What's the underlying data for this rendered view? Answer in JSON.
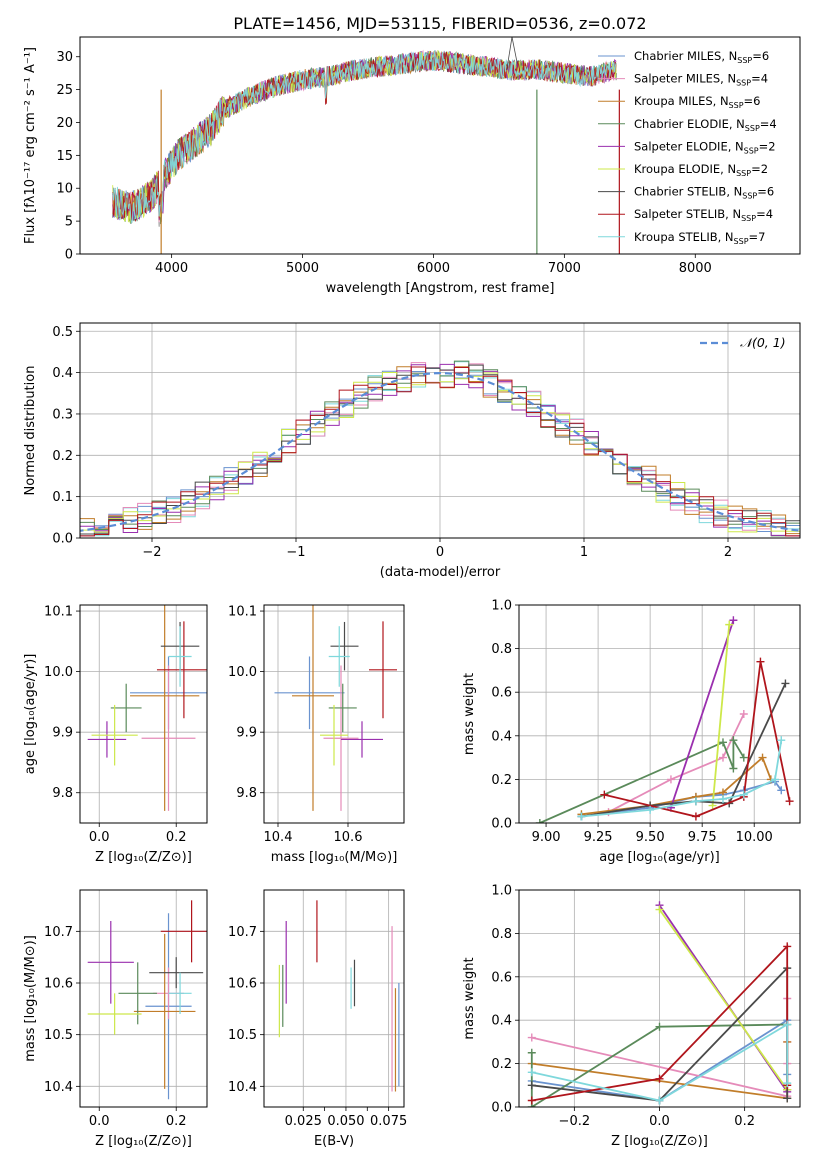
{
  "title": "PLATE=1456, MJD=53115, FIBERID=0536, z=0.072",
  "series": [
    {
      "name": "Chabrier MILES, N",
      "sub": "SSP",
      "eq": "=6",
      "color": "#6a93cf"
    },
    {
      "name": "Salpeter MILES, N",
      "sub": "SSP",
      "eq": "=4",
      "color": "#e58bb9"
    },
    {
      "name": "Kroupa MILES, N",
      "sub": "SSP",
      "eq": "=6",
      "color": "#c17d2a"
    },
    {
      "name": "Chabrier ELODIE, N",
      "sub": "SSP",
      "eq": "=4",
      "color": "#5a8a5a"
    },
    {
      "name": "Salpeter ELODIE, N",
      "sub": "SSP",
      "eq": "=2",
      "color": "#9a2fae"
    },
    {
      "name": "Kroupa ELODIE, N",
      "sub": "SSP",
      "eq": "=2",
      "color": "#cde84a"
    },
    {
      "name": "Chabrier STELIB, N",
      "sub": "SSP",
      "eq": "=6",
      "color": "#4a4a4a"
    },
    {
      "name": "Salpeter STELIB, N",
      "sub": "SSP",
      "eq": "=4",
      "color": "#b0151c"
    },
    {
      "name": "Kroupa STELIB, N",
      "sub": "SSP",
      "eq": "=7",
      "color": "#7fd8dc"
    }
  ],
  "chart_data": [
    {
      "id": "spectrum",
      "type": "line",
      "xlabel": "wavelength [Angstrom, rest frame]",
      "ylabel": "Flux [fλ10⁻¹⁷ erg cm⁻² s⁻¹ A⁻¹]",
      "xlim": [
        3300,
        8800
      ],
      "ylim": [
        0,
        33
      ],
      "xticks": [
        4000,
        5000,
        6000,
        7000,
        8000
      ],
      "yticks": [
        0,
        5,
        10,
        15,
        20,
        25,
        30
      ],
      "data_envelope": {
        "x": [
          3550,
          3700,
          3850,
          3950,
          4050,
          4150,
          4300,
          4400,
          4600,
          4800,
          5000,
          5200,
          5400,
          5600,
          5800,
          6000,
          6200,
          6400,
          6600,
          6800,
          7000,
          7200,
          7400
        ],
        "y": [
          8,
          7,
          9,
          12,
          15,
          16.5,
          19,
          22,
          24,
          25.5,
          26.5,
          27,
          28,
          28.5,
          29,
          29.5,
          29,
          28.5,
          28,
          28,
          27.5,
          27,
          28
        ]
      },
      "grid": false,
      "legend": "top-right"
    },
    {
      "id": "residual-hist",
      "type": "step",
      "xlabel": "(data-model)/error",
      "ylabel": "Normed distribution",
      "xlim": [
        -2.5,
        2.5
      ],
      "ylim": [
        0,
        0.52
      ],
      "xticks": [
        -2,
        -1,
        0,
        1,
        2
      ],
      "xticklabels": [
        "−2",
        "−1",
        "0",
        "1",
        "2"
      ],
      "yticks": [
        0.0,
        0.1,
        0.2,
        0.3,
        0.4,
        0.5
      ],
      "yticklabels": [
        "0.0",
        "0.1",
        "0.2",
        "0.3",
        "0.4",
        "0.5"
      ],
      "reference_curve": {
        "label": "𝒩(0, 1)",
        "mean": 0,
        "sigma": 1,
        "color": "#5b8dd6"
      },
      "grid": true,
      "legend": "top-right"
    },
    {
      "id": "age-vs-Z",
      "type": "errorbar",
      "xlabel": "Z [log₁₀(Z/Z⊙)]",
      "ylabel": "age  [log₁₀(age/yr)]",
      "xlim": [
        -0.05,
        0.28
      ],
      "ylim": [
        9.75,
        10.11
      ],
      "xticks": [
        0.0,
        0.2
      ],
      "xticklabels": [
        "0.0",
        "0.2"
      ],
      "yticks": [
        9.8,
        9.9,
        10.0,
        10.1
      ],
      "yticklabels": [
        "9.8",
        "9.9",
        "10.0",
        "10.1"
      ],
      "points": [
        {
          "s": 0,
          "x": 0.18,
          "xerr": 0.1,
          "y": 9.965,
          "yerr": 0.06
        },
        {
          "s": 1,
          "x": 0.18,
          "xerr": 0.07,
          "y": 9.89,
          "yerr": 0.12
        },
        {
          "s": 2,
          "x": 0.17,
          "xerr": 0.09,
          "y": 9.96,
          "yerr": 0.19
        },
        {
          "s": 3,
          "x": 0.07,
          "xerr": 0.04,
          "y": 9.94,
          "yerr": 0.04
        },
        {
          "s": 4,
          "x": 0.02,
          "xerr": 0.05,
          "y": 9.888,
          "yerr": 0.03
        },
        {
          "s": 5,
          "x": 0.04,
          "xerr": 0.06,
          "y": 9.895,
          "yerr": 0.05
        },
        {
          "s": 6,
          "x": 0.21,
          "xerr": 0.05,
          "y": 10.042,
          "yerr": 0.04
        },
        {
          "s": 7,
          "x": 0.22,
          "xerr": 0.07,
          "y": 10.003,
          "yerr": 0.08
        },
        {
          "s": 8,
          "x": 0.21,
          "xerr": 0.03,
          "y": 10.025,
          "yerr": 0.05
        }
      ],
      "grid": true
    },
    {
      "id": "age-vs-mass",
      "type": "errorbar",
      "xlabel": "mass [log₁₀(M/M⊙)]",
      "ylabel": "",
      "xlim": [
        10.36,
        10.76
      ],
      "ylim": [
        9.75,
        10.11
      ],
      "xticks": [
        10.4,
        10.6
      ],
      "xticklabels": [
        "10.4",
        "10.6"
      ],
      "yticks": [
        9.8,
        9.9,
        10.0,
        10.1
      ],
      "yticklabels": [
        "9.8",
        "9.9",
        "10.0",
        "10.1"
      ],
      "points": [
        {
          "s": 0,
          "x": 10.49,
          "xerr": 0.1,
          "y": 9.965,
          "yerr": 0.06
        },
        {
          "s": 1,
          "x": 10.58,
          "xerr": 0.05,
          "y": 9.89,
          "yerr": 0.12
        },
        {
          "s": 2,
          "x": 10.5,
          "xerr": 0.06,
          "y": 9.96,
          "yerr": 0.19
        },
        {
          "s": 3,
          "x": 10.585,
          "xerr": 0.04,
          "y": 9.94,
          "yerr": 0.04
        },
        {
          "s": 4,
          "x": 10.64,
          "xerr": 0.06,
          "y": 9.888,
          "yerr": 0.03
        },
        {
          "s": 5,
          "x": 10.56,
          "xerr": 0.04,
          "y": 9.895,
          "yerr": 0.05
        },
        {
          "s": 6,
          "x": 10.59,
          "xerr": 0.04,
          "y": 10.042,
          "yerr": 0.04
        },
        {
          "s": 7,
          "x": 10.7,
          "xerr": 0.04,
          "y": 10.003,
          "yerr": 0.08
        },
        {
          "s": 8,
          "x": 10.575,
          "xerr": 0.03,
          "y": 10.025,
          "yerr": 0.05
        }
      ],
      "grid": true
    },
    {
      "id": "weight-vs-age",
      "type": "line",
      "xlabel": "age  [log₁₀(age/yr)]",
      "ylabel": "mass weight",
      "xlim": [
        8.87,
        10.22
      ],
      "ylim": [
        0,
        1
      ],
      "xticks": [
        9.0,
        9.25,
        9.5,
        9.75,
        10.0
      ],
      "xticklabels": [
        "9.00",
        "9.25",
        "9.50",
        "9.75",
        "10.00"
      ],
      "yticks": [
        0,
        0.2,
        0.4,
        0.6,
        0.8,
        1.0
      ],
      "yticklabels": [
        "0.0",
        "0.2",
        "0.4",
        "0.6",
        "0.8",
        "1.0"
      ],
      "lines": [
        {
          "s": 0,
          "x": [
            9.17,
            9.5,
            9.72,
            9.85,
            9.95,
            10.1,
            10.13
          ],
          "y": [
            0.03,
            0.07,
            0.12,
            0.13,
            0.15,
            0.19,
            0.15
          ]
        },
        {
          "s": 1,
          "x": [
            9.3,
            9.6,
            9.85,
            9.95
          ],
          "y": [
            0.05,
            0.2,
            0.3,
            0.5
          ]
        },
        {
          "s": 2,
          "x": [
            9.17,
            9.5,
            9.72,
            9.85,
            10.04,
            10.08
          ],
          "y": [
            0.04,
            0.08,
            0.12,
            0.14,
            0.3,
            0.2
          ]
        },
        {
          "s": 3,
          "x": [
            8.97,
            9.85,
            9.9,
            9.9,
            9.95
          ],
          "y": [
            0.0,
            0.37,
            0.25,
            0.38,
            0.3
          ]
        },
        {
          "s": 4,
          "x": [
            9.6,
            9.9
          ],
          "y": [
            0.07,
            0.93
          ]
        },
        {
          "s": 5,
          "x": [
            9.8,
            9.88
          ],
          "y": [
            0.08,
            0.91
          ]
        },
        {
          "s": 6,
          "x": [
            9.17,
            9.5,
            9.72,
            9.88,
            10.15
          ],
          "y": [
            0.03,
            0.08,
            0.1,
            0.09,
            0.64
          ]
        },
        {
          "s": 7,
          "x": [
            9.28,
            9.72,
            9.95,
            10.03,
            10.17
          ],
          "y": [
            0.13,
            0.03,
            0.12,
            0.74,
            0.1
          ]
        },
        {
          "s": 8,
          "x": [
            9.17,
            9.5,
            9.72,
            9.85,
            9.95,
            10.1,
            10.13
          ],
          "y": [
            0.03,
            0.06,
            0.1,
            0.11,
            0.13,
            0.2,
            0.38
          ]
        }
      ],
      "grid": true
    },
    {
      "id": "mass-vs-Z",
      "type": "errorbar",
      "xlabel": "Z [log₁₀(Z/Z⊙)]",
      "ylabel": "mass [log₁₀(M/M⊙)]",
      "xlim": [
        -0.05,
        0.28
      ],
      "ylim": [
        10.36,
        10.78
      ],
      "xticks": [
        0.0,
        0.2
      ],
      "xticklabels": [
        "0.0",
        "0.2"
      ],
      "yticks": [
        10.4,
        10.5,
        10.6,
        10.7
      ],
      "yticklabels": [
        "10.4",
        "10.5",
        "10.6",
        "10.7"
      ],
      "points": [
        {
          "s": 0,
          "x": 0.18,
          "xerr": 0.06,
          "y": 10.555,
          "yerr": 0.18
        },
        {
          "s": 1,
          "x": 0.18,
          "xerr": 0.04,
          "y": 10.58,
          "yerr": 0.05
        },
        {
          "s": 2,
          "x": 0.17,
          "xerr": 0.08,
          "y": 10.545,
          "yerr": 0.15
        },
        {
          "s": 3,
          "x": 0.1,
          "xerr": 0.05,
          "y": 10.58,
          "yerr": 0.06
        },
        {
          "s": 4,
          "x": 0.03,
          "xerr": 0.06,
          "y": 10.64,
          "yerr": 0.08
        },
        {
          "s": 5,
          "x": 0.04,
          "xerr": 0.07,
          "y": 10.54,
          "yerr": 0.04
        },
        {
          "s": 6,
          "x": 0.2,
          "xerr": 0.07,
          "y": 10.62,
          "yerr": 0.03
        },
        {
          "s": 7,
          "x": 0.24,
          "xerr": 0.08,
          "y": 10.7,
          "yerr": 0.06
        },
        {
          "s": 8,
          "x": 0.21,
          "xerr": 0.03,
          "y": 10.58,
          "yerr": 0.04
        }
      ],
      "grid": true
    },
    {
      "id": "mass-vs-EBV",
      "type": "errorbar",
      "xlabel": "E(B-V)",
      "ylabel": "",
      "xlim": [
        0.002,
        0.084
      ],
      "ylim": [
        10.36,
        10.78
      ],
      "xticks": [
        0.025,
        0.05,
        0.075
      ],
      "xticklabels": [
        "0.025",
        "0.050",
        "0.075"
      ],
      "xticks_extra": [
        0.0375,
        0.0625
      ],
      "xticklabels_extra": [
        "0.0",
        "0.0"
      ],
      "yticks": [
        10.4,
        10.5,
        10.6,
        10.7
      ],
      "yticklabels": [
        "10.4",
        "10.5",
        "10.6",
        "10.7"
      ],
      "points": [
        {
          "s": 0,
          "x": 0.081,
          "xerr": 0,
          "y": 10.5,
          "yerr": 0.1
        },
        {
          "s": 1,
          "x": 0.077,
          "xerr": 0,
          "y": 10.55,
          "yerr": 0.16
        },
        {
          "s": 2,
          "x": 0.079,
          "xerr": 0,
          "y": 10.49,
          "yerr": 0.1
        },
        {
          "s": 3,
          "x": 0.013,
          "xerr": 0,
          "y": 10.575,
          "yerr": 0.06
        },
        {
          "s": 4,
          "x": 0.015,
          "xerr": 0,
          "y": 10.64,
          "yerr": 0.08
        },
        {
          "s": 5,
          "x": 0.011,
          "xerr": 0,
          "y": 10.565,
          "yerr": 0.07
        },
        {
          "s": 6,
          "x": 0.055,
          "xerr": 0,
          "y": 10.6,
          "yerr": 0.045
        },
        {
          "s": 7,
          "x": 0.033,
          "xerr": 0,
          "y": 10.7,
          "yerr": 0.06
        },
        {
          "s": 8,
          "x": 0.053,
          "xerr": 0,
          "y": 10.59,
          "yerr": 0.04
        }
      ],
      "grid": true
    },
    {
      "id": "weight-vs-Z",
      "type": "line",
      "xlabel": "Z [log₁₀(Z/Z⊙)]",
      "ylabel": "mass weight",
      "xlim": [
        -0.33,
        0.33
      ],
      "ylim": [
        0,
        1
      ],
      "xticks": [
        -0.2,
        0.0,
        0.2
      ],
      "xticklabels": [
        "−0.2",
        "0.0",
        "0.2"
      ],
      "yticks": [
        0,
        0.2,
        0.4,
        0.6,
        0.8,
        1.0
      ],
      "yticklabels": [
        "0.0",
        "0.2",
        "0.4",
        "0.6",
        "0.8",
        "1.0"
      ],
      "lines": [
        {
          "s": 0,
          "x": [
            -0.3,
            0.0,
            0.3,
            0.3
          ],
          "y": [
            0.12,
            0.03,
            0.4,
            0.15
          ]
        },
        {
          "s": 1,
          "x": [
            -0.3,
            0.3,
            0.3,
            0.3,
            0.3
          ],
          "y": [
            0.32,
            0.05,
            0.3,
            0.5,
            0.2
          ]
        },
        {
          "s": 2,
          "x": [
            -0.3,
            0.3,
            0.3,
            0.3
          ],
          "y": [
            0.2,
            0.04,
            0.08,
            0.3
          ]
        },
        {
          "s": 3,
          "x": [
            -0.3,
            -0.3,
            0.0,
            0.3
          ],
          "y": [
            0.25,
            0.0,
            0.37,
            0.38
          ]
        },
        {
          "s": 4,
          "x": [
            0.0,
            0.3
          ],
          "y": [
            0.93,
            0.07
          ]
        },
        {
          "s": 5,
          "x": [
            0.0,
            0.3
          ],
          "y": [
            0.91,
            0.08
          ]
        },
        {
          "s": 6,
          "x": [
            -0.3,
            0.0,
            0.3,
            0.3
          ],
          "y": [
            0.1,
            0.03,
            0.64,
            0.04
          ]
        },
        {
          "s": 7,
          "x": [
            -0.3,
            0.0,
            0.3,
            0.3
          ],
          "y": [
            0.03,
            0.13,
            0.74,
            0.1
          ]
        },
        {
          "s": 8,
          "x": [
            -0.3,
            0.0,
            0.3,
            0.3
          ],
          "y": [
            0.16,
            0.03,
            0.38,
            0.11
          ]
        }
      ],
      "grid": true
    }
  ]
}
